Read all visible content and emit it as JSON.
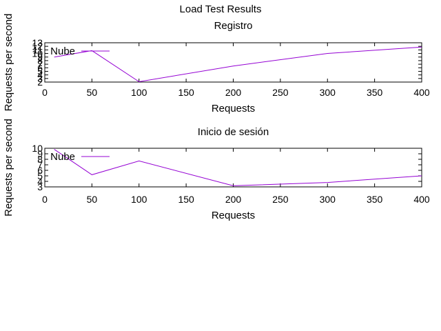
{
  "page_title": "Load Test Results",
  "colors": {
    "series": "#9400d3",
    "frame": "#000000",
    "background": "#ffffff"
  },
  "chart_data": [
    {
      "type": "line",
      "title": "Registro",
      "xlabel": "Requests",
      "ylabel": "Requests per second",
      "xlim": [
        0,
        400
      ],
      "ylim": [
        2,
        13
      ],
      "xticks": [
        0,
        50,
        100,
        150,
        200,
        250,
        300,
        350,
        400
      ],
      "yticks": [
        2,
        3,
        4,
        5,
        6,
        7,
        8,
        9,
        10,
        11,
        12,
        13
      ],
      "grid": false,
      "legend_position": "top-left",
      "series": [
        {
          "name": "Nube",
          "x": [
            10,
            50,
            100,
            200,
            300,
            400
          ],
          "y": [
            9.0,
            10.8,
            2.1,
            6.5,
            10.0,
            11.8
          ]
        }
      ]
    },
    {
      "type": "line",
      "title": "Inicio de sesión",
      "xlabel": "Requests",
      "ylabel": "Requests per second",
      "xlim": [
        0,
        400
      ],
      "ylim": [
        3,
        10
      ],
      "xticks": [
        0,
        50,
        100,
        150,
        200,
        250,
        300,
        350,
        400
      ],
      "yticks": [
        3,
        4,
        5,
        6,
        7,
        8,
        9,
        10
      ],
      "grid": false,
      "legend_position": "top-left",
      "series": [
        {
          "name": "Nube",
          "x": [
            10,
            50,
            100,
            200,
            300,
            400
          ],
          "y": [
            9.8,
            5.2,
            7.7,
            3.2,
            3.8,
            5.0
          ]
        }
      ]
    }
  ]
}
